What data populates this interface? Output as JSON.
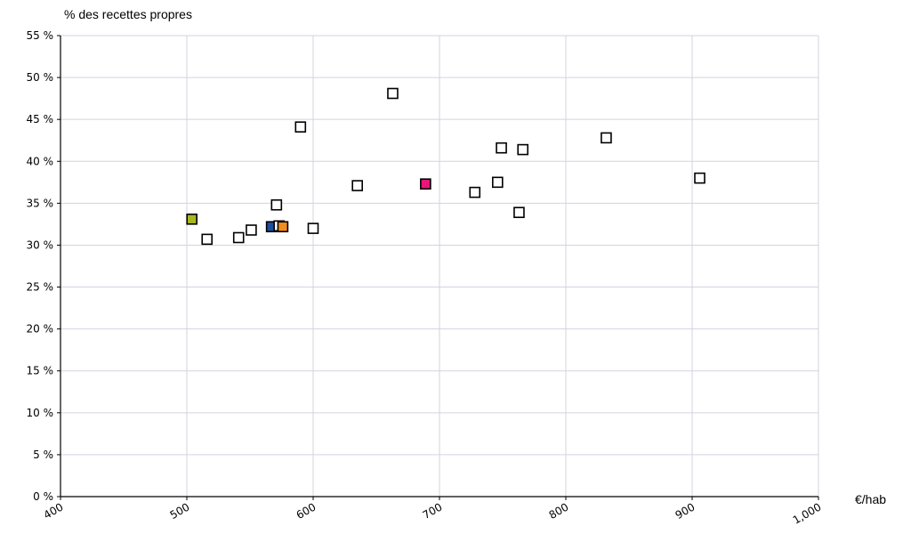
{
  "chart_data": {
    "type": "scatter",
    "ylabel": "% des recettes propres",
    "xlabel": "€/hab",
    "xlim": [
      400,
      1000
    ],
    "ylim": [
      0,
      55
    ],
    "x_ticks": [
      "400",
      "500",
      "600",
      "700",
      "800",
      "900",
      "1,000"
    ],
    "x_tick_values": [
      400,
      500,
      600,
      700,
      800,
      900,
      1000
    ],
    "y_ticks": [
      "0 %",
      "5 %",
      "10 %",
      "15 %",
      "20 %",
      "25 %",
      "30 %",
      "35 %",
      "40 %",
      "45 %",
      "50 %",
      "55 %"
    ],
    "y_tick_values": [
      0,
      5,
      10,
      15,
      20,
      25,
      30,
      35,
      40,
      45,
      50,
      55
    ],
    "grid": true,
    "marker": "square",
    "points": [
      {
        "x": 504,
        "y": 33.1,
        "color": "#a8b820"
      },
      {
        "x": 516,
        "y": 30.7,
        "color": "#ffffff"
      },
      {
        "x": 541,
        "y": 30.9,
        "color": "#ffffff"
      },
      {
        "x": 551,
        "y": 31.8,
        "color": "#ffffff"
      },
      {
        "x": 567,
        "y": 32.2,
        "color": "#1f4e9e"
      },
      {
        "x": 571,
        "y": 34.8,
        "color": "#ffffff"
      },
      {
        "x": 573,
        "y": 32.3,
        "color": "#ffffff"
      },
      {
        "x": 576,
        "y": 32.2,
        "color": "#f28c1e"
      },
      {
        "x": 590,
        "y": 44.1,
        "color": "#ffffff"
      },
      {
        "x": 600,
        "y": 32.0,
        "color": "#ffffff"
      },
      {
        "x": 635,
        "y": 37.1,
        "color": "#ffffff"
      },
      {
        "x": 663,
        "y": 48.1,
        "color": "#ffffff"
      },
      {
        "x": 689,
        "y": 37.3,
        "color": "#e8157a"
      },
      {
        "x": 728,
        "y": 36.3,
        "color": "#ffffff"
      },
      {
        "x": 746,
        "y": 37.5,
        "color": "#ffffff"
      },
      {
        "x": 749,
        "y": 41.6,
        "color": "#ffffff"
      },
      {
        "x": 763,
        "y": 33.9,
        "color": "#ffffff"
      },
      {
        "x": 766,
        "y": 41.4,
        "color": "#ffffff"
      },
      {
        "x": 832,
        "y": 42.8,
        "color": "#ffffff"
      },
      {
        "x": 906,
        "y": 38.0,
        "color": "#ffffff"
      }
    ]
  }
}
